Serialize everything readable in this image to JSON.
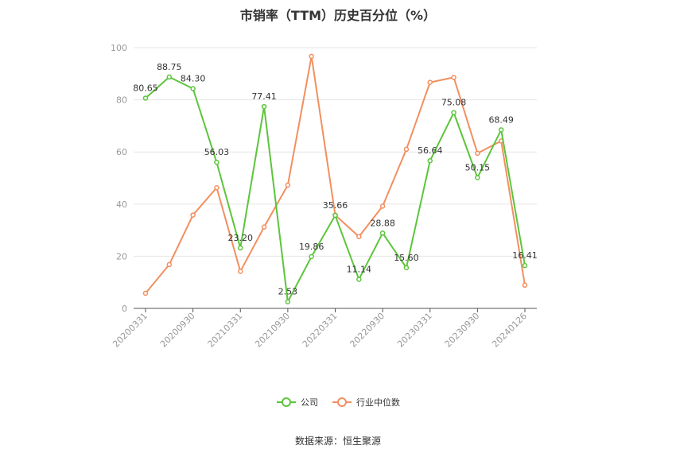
{
  "title": "市销率（TTM）历史百分位（%）",
  "source": "数据来源：恒生聚源",
  "chart_data": {
    "type": "line",
    "ylim": [
      0,
      100
    ],
    "yticks": [
      0,
      20,
      40,
      60,
      80,
      100
    ],
    "grid": "horizontal",
    "legend_position": "bottom",
    "x_ticks_shown": [
      "20200331",
      "20200930",
      "20210331",
      "20210930",
      "20220331",
      "20220930",
      "20230331",
      "20230930",
      "20240126"
    ],
    "x_count": 17,
    "series": [
      {
        "name": "公司",
        "color": "#5cc53b",
        "labeled": true,
        "values": [
          80.65,
          88.75,
          84.3,
          56.03,
          23.2,
          77.41,
          2.53,
          19.86,
          35.66,
          11.14,
          28.88,
          15.6,
          56.64,
          75.08,
          50.15,
          68.49,
          16.41
        ],
        "labels": [
          "80.65",
          "88.75",
          "84.30",
          "56.03",
          "23.20",
          "77.41",
          "2.53",
          "19.86",
          "35.66",
          "11.14",
          "28.88",
          "15.60",
          "56.64",
          "75.08",
          "50.15",
          "68.49",
          "16.41"
        ]
      },
      {
        "name": "行业中位数",
        "color": "#f28f5f",
        "labeled": false,
        "values": [
          5.8,
          16.8,
          35.8,
          46.3,
          14.2,
          31.2,
          47.3,
          96.7,
          35.8,
          27.5,
          39.2,
          61.0,
          86.7,
          88.6,
          59.5,
          64.2,
          8.9
        ]
      }
    ]
  }
}
